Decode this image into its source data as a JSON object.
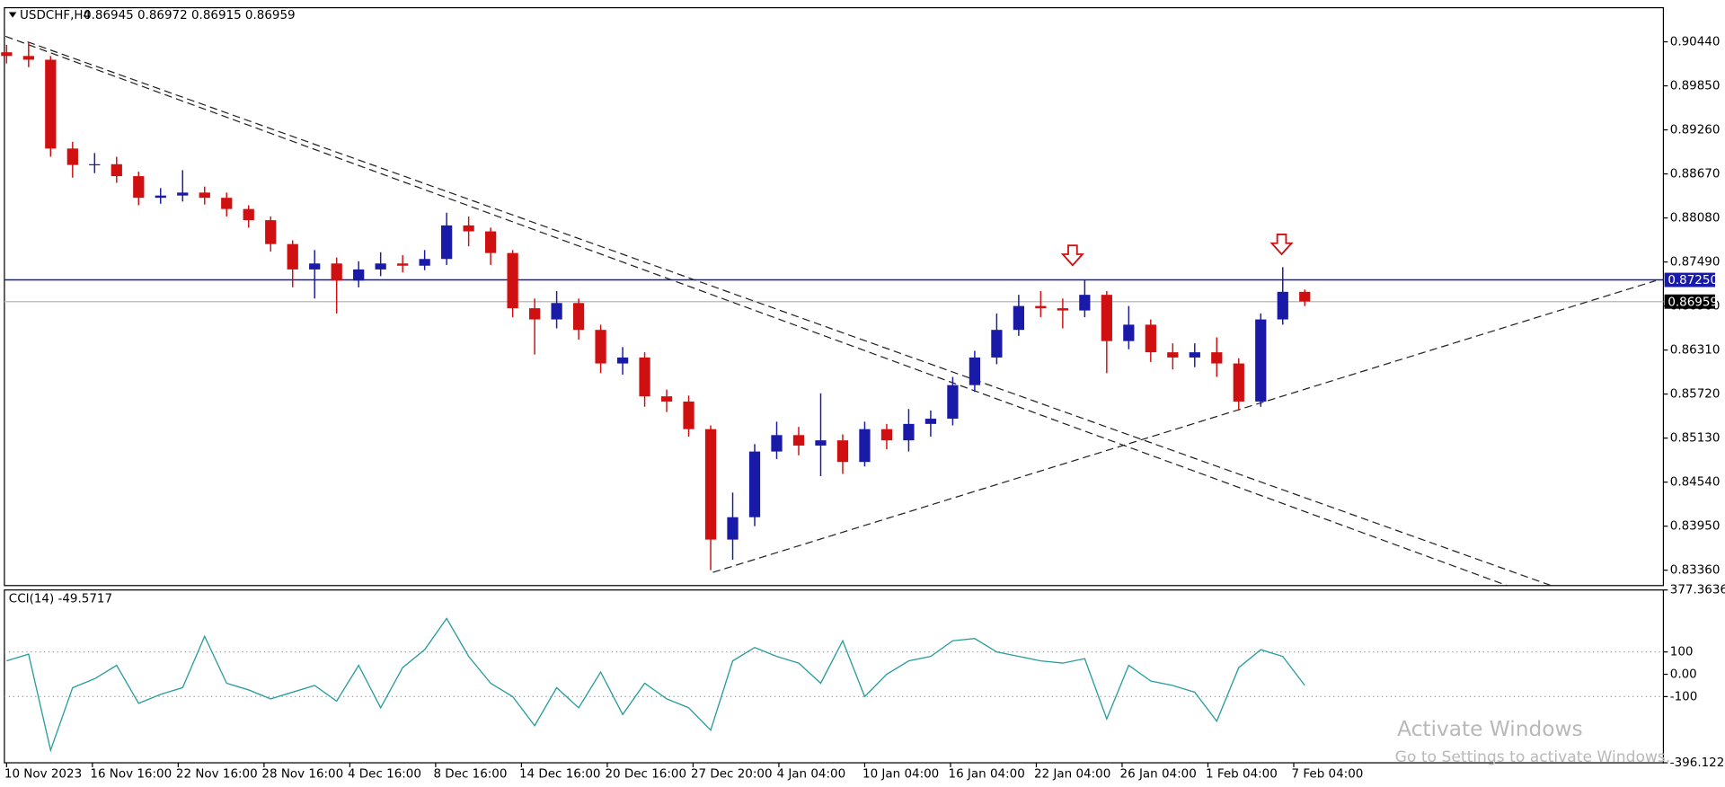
{
  "chart_data": [
    {
      "type": "candlestick",
      "title": "USDCHF,H4",
      "quote": "0.86945 0.86972 0.86915 0.86959",
      "open": [
        0.903,
        0.9025,
        0.902,
        0.8901,
        0.8879,
        0.888,
        0.8864,
        0.8835,
        0.8838,
        0.8842,
        0.8835,
        0.882,
        0.8805,
        0.8773,
        0.8739,
        0.8747,
        0.8724,
        0.8739,
        0.8747,
        0.8744,
        0.8753,
        0.8798,
        0.879,
        0.8761,
        0.8687,
        0.8672,
        0.8694,
        0.8658,
        0.8613,
        0.8621,
        0.8569,
        0.8562,
        0.8525,
        0.8377,
        0.8407,
        0.8495,
        0.8517,
        0.8503,
        0.851,
        0.8481,
        0.8525,
        0.851,
        0.8532,
        0.8539,
        0.8584,
        0.8621,
        0.8658,
        0.869,
        0.8687,
        0.8684,
        0.8705,
        0.8643,
        0.8665,
        0.8628,
        0.8621,
        0.8628,
        0.8613,
        0.8562,
        0.8672,
        0.8709
      ],
      "high": [
        0.904,
        0.9044,
        0.9025,
        0.891,
        0.8895,
        0.889,
        0.887,
        0.8848,
        0.8872,
        0.885,
        0.8842,
        0.8825,
        0.881,
        0.8778,
        0.8765,
        0.8755,
        0.875,
        0.8762,
        0.8758,
        0.8765,
        0.8815,
        0.881,
        0.8795,
        0.8765,
        0.87,
        0.871,
        0.87,
        0.8665,
        0.8635,
        0.8628,
        0.8578,
        0.857,
        0.853,
        0.844,
        0.8505,
        0.8535,
        0.8528,
        0.8573,
        0.8518,
        0.8535,
        0.8532,
        0.8552,
        0.855,
        0.8595,
        0.863,
        0.868,
        0.8705,
        0.871,
        0.87,
        0.8725,
        0.871,
        0.869,
        0.8672,
        0.864,
        0.864,
        0.8648,
        0.862,
        0.868,
        0.8742,
        0.8712
      ],
      "low": [
        0.9015,
        0.901,
        0.889,
        0.8862,
        0.8868,
        0.8855,
        0.8825,
        0.8827,
        0.883,
        0.8826,
        0.881,
        0.8795,
        0.8763,
        0.8715,
        0.87,
        0.868,
        0.8715,
        0.873,
        0.8735,
        0.8738,
        0.8745,
        0.877,
        0.8745,
        0.8675,
        0.8625,
        0.866,
        0.8645,
        0.86,
        0.8598,
        0.8555,
        0.8548,
        0.8515,
        0.8336,
        0.835,
        0.8395,
        0.8485,
        0.849,
        0.8462,
        0.8465,
        0.8475,
        0.8498,
        0.8495,
        0.8515,
        0.853,
        0.8575,
        0.8612,
        0.865,
        0.8675,
        0.866,
        0.8675,
        0.86,
        0.8632,
        0.8615,
        0.8605,
        0.8608,
        0.8595,
        0.855,
        0.8555,
        0.8665,
        0.869
      ],
      "close": [
        0.9025,
        0.902,
        0.8901,
        0.8879,
        0.888,
        0.8864,
        0.8835,
        0.8838,
        0.8842,
        0.8835,
        0.882,
        0.8805,
        0.8773,
        0.8739,
        0.8747,
        0.8724,
        0.8739,
        0.8747,
        0.8744,
        0.8753,
        0.8798,
        0.879,
        0.8761,
        0.8687,
        0.8672,
        0.8694,
        0.8658,
        0.8613,
        0.8621,
        0.8569,
        0.8562,
        0.8525,
        0.8377,
        0.8407,
        0.8495,
        0.8517,
        0.8503,
        0.851,
        0.8481,
        0.8525,
        0.851,
        0.8532,
        0.8539,
        0.8584,
        0.8621,
        0.8658,
        0.869,
        0.8687,
        0.8684,
        0.8705,
        0.8643,
        0.8665,
        0.8628,
        0.8621,
        0.8628,
        0.8613,
        0.8562,
        0.8672,
        0.8709,
        0.8696
      ],
      "up_color": "#1a1aa8",
      "down_color": "#d01010",
      "xlim": [
        -0.1,
        75.3
      ],
      "ylim": [
        0.83154,
        0.90897
      ],
      "yticks": [
        {
          "value": 0.9044,
          "label": "0.90440"
        },
        {
          "value": 0.8985,
          "label": "0.89850"
        },
        {
          "value": 0.8926,
          "label": "0.89260"
        },
        {
          "value": 0.8867,
          "label": "0.88670"
        },
        {
          "value": 0.8808,
          "label": "0.88080"
        },
        {
          "value": 0.8749,
          "label": "0.87490"
        },
        {
          "value": 0.869,
          "label": "0.86900"
        },
        {
          "value": 0.8631,
          "label": "0.86310"
        },
        {
          "value": 0.8572,
          "label": "0.85720"
        },
        {
          "value": 0.8513,
          "label": "0.85130"
        },
        {
          "value": 0.8454,
          "label": "0.84540"
        },
        {
          "value": 0.8395,
          "label": "0.83950"
        },
        {
          "value": 0.8336,
          "label": "0.83360"
        }
      ],
      "price_lines": [
        {
          "value": 0.8725,
          "label": "0.87250",
          "color": "#1a1aa8",
          "line_color": "#1a1aa8"
        },
        {
          "value": 0.86959,
          "label": "0.86959",
          "color": "#000000",
          "line_color": "#c0c0c0"
        }
      ]
    },
    {
      "type": "line",
      "title": "CCI(14) -49.5717",
      "values": [
        60,
        90,
        -340,
        -60,
        -20,
        40,
        -130,
        -90,
        -60,
        170,
        -40,
        -70,
        -110,
        -80,
        -50,
        -120,
        40,
        -150,
        30,
        110,
        250,
        80,
        -40,
        -100,
        -230,
        -60,
        -150,
        10,
        -180,
        -40,
        -110,
        -150,
        -250,
        60,
        120,
        80,
        50,
        -40,
        150,
        -100,
        0,
        60,
        80,
        150,
        160,
        100,
        80,
        60,
        50,
        70,
        -200,
        40,
        -30,
        -50,
        -80,
        -210,
        30,
        110,
        80,
        -49.5717
      ],
      "color": "#2a9d9d",
      "xlim": [
        -0.1,
        75.3
      ],
      "ylim": [
        -396.1224,
        377.3636
      ],
      "yticks": [
        377.3636,
        100,
        {
          "value": 0,
          "label": "0.00"
        },
        -100,
        -396.1224
      ],
      "levels": [
        100,
        -100
      ],
      "xticks": [
        {
          "value": 0,
          "label": "10 Nov 2023"
        },
        {
          "value": 3.9,
          "label": "16 Nov 16:00"
        },
        {
          "value": 7.8,
          "label": "22 Nov 16:00"
        },
        {
          "value": 11.7,
          "label": "28 Nov 16:00"
        },
        {
          "value": 15.6,
          "label": "4 Dec 16:00"
        },
        {
          "value": 19.5,
          "label": "8 Dec 16:00"
        },
        {
          "value": 23.4,
          "label": "14 Dec 16:00"
        },
        {
          "value": 27.3,
          "label": "20 Dec 16:00"
        },
        {
          "value": 31.2,
          "label": "27 Dec 20:00"
        },
        {
          "value": 35.1,
          "label": "4 Jan 04:00"
        },
        {
          "value": 39,
          "label": "10 Jan 04:00"
        },
        {
          "value": 42.9,
          "label": "16 Jan 04:00"
        },
        {
          "value": 46.8,
          "label": "22 Jan 04:00"
        },
        {
          "value": 50.7,
          "label": "26 Jan 04:00"
        },
        {
          "value": 54.6,
          "label": "1 Feb 04:00"
        },
        {
          "value": 58.5,
          "label": "7 Feb 04:00"
        }
      ]
    }
  ],
  "watermark": {
    "title": "Activate Windows",
    "subtitle": "Go to Settings to activate Windows."
  }
}
